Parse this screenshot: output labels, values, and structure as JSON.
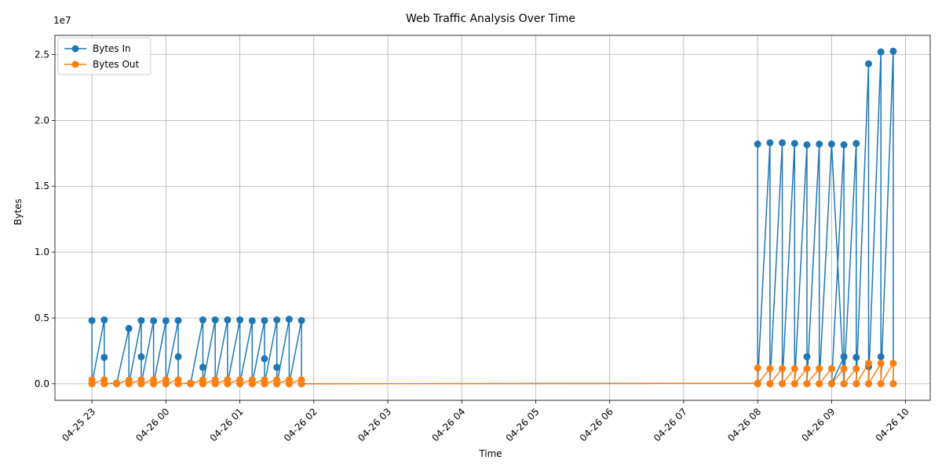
{
  "chart_data": {
    "type": "line",
    "title": "Web Traffic Analysis Over Time",
    "xlabel": "Time",
    "ylabel": "Bytes",
    "y_offset_text": "1e7",
    "ylim": [
      -1260000,
      26460000
    ],
    "xlim": [
      "2026-04-25 22:30",
      "2026-04-26 10:20"
    ],
    "grid": true,
    "legend_position": "top-left",
    "x_ticks": [
      {
        "time": "2026-04-25 23:00",
        "label": "04-25 23"
      },
      {
        "time": "2026-04-26 00:00",
        "label": "04-26 00"
      },
      {
        "time": "2026-04-26 01:00",
        "label": "04-26 01"
      },
      {
        "time": "2026-04-26 02:00",
        "label": "04-26 02"
      },
      {
        "time": "2026-04-26 03:00",
        "label": "04-26 03"
      },
      {
        "time": "2026-04-26 04:00",
        "label": "04-26 04"
      },
      {
        "time": "2026-04-26 05:00",
        "label": "04-26 05"
      },
      {
        "time": "2026-04-26 06:00",
        "label": "04-26 06"
      },
      {
        "time": "2026-04-26 07:00",
        "label": "04-26 07"
      },
      {
        "time": "2026-04-26 08:00",
        "label": "04-26 08"
      },
      {
        "time": "2026-04-26 09:00",
        "label": "04-26 09"
      },
      {
        "time": "2026-04-26 10:00",
        "label": "04-26 10"
      }
    ],
    "y_ticks": [
      {
        "value": 0,
        "label": "0.0"
      },
      {
        "value": 5000000,
        "label": "0.5"
      },
      {
        "value": 10000000,
        "label": "1.0"
      },
      {
        "value": 15000000,
        "label": "1.5"
      },
      {
        "value": 20000000,
        "label": "2.0"
      },
      {
        "value": 25000000,
        "label": "2.5"
      }
    ],
    "series": [
      {
        "name": "Bytes In",
        "color": "#1f77b4",
        "points": [
          [
            "2026-04-25 23:00",
            4800000
          ],
          [
            "2026-04-25 23:00",
            0
          ],
          [
            "2026-04-25 23:10",
            4850000
          ],
          [
            "2026-04-25 23:10",
            2000000
          ],
          [
            "2026-04-25 23:10",
            0
          ],
          [
            "2026-04-25 23:20",
            50000
          ],
          [
            "2026-04-25 23:20",
            0
          ],
          [
            "2026-04-25 23:30",
            4200000
          ],
          [
            "2026-04-25 23:30",
            0
          ],
          [
            "2026-04-25 23:40",
            4800000
          ],
          [
            "2026-04-25 23:40",
            2050000
          ],
          [
            "2026-04-25 23:40",
            0
          ],
          [
            "2026-04-25 23:50",
            4780000
          ],
          [
            "2026-04-25 23:50",
            0
          ],
          [
            "2026-04-26 00:00",
            4780000
          ],
          [
            "2026-04-26 00:00",
            0
          ],
          [
            "2026-04-26 00:10",
            4800000
          ],
          [
            "2026-04-26 00:10",
            2050000
          ],
          [
            "2026-04-26 00:10",
            0
          ],
          [
            "2026-04-26 00:20",
            50000
          ],
          [
            "2026-04-26 00:20",
            0
          ],
          [
            "2026-04-26 00:30",
            4850000
          ],
          [
            "2026-04-26 00:30",
            1250000
          ],
          [
            "2026-04-26 00:30",
            0
          ],
          [
            "2026-04-26 00:40",
            4850000
          ],
          [
            "2026-04-26 00:40",
            0
          ],
          [
            "2026-04-26 00:50",
            4850000
          ],
          [
            "2026-04-26 00:50",
            0
          ],
          [
            "2026-04-26 01:00",
            4850000
          ],
          [
            "2026-04-26 01:00",
            0
          ],
          [
            "2026-04-26 01:10",
            4780000
          ],
          [
            "2026-04-26 01:10",
            0
          ],
          [
            "2026-04-26 01:20",
            4800000
          ],
          [
            "2026-04-26 01:20",
            1900000
          ],
          [
            "2026-04-26 01:20",
            0
          ],
          [
            "2026-04-26 01:30",
            4850000
          ],
          [
            "2026-04-26 01:30",
            1250000
          ],
          [
            "2026-04-26 01:30",
            0
          ],
          [
            "2026-04-26 01:40",
            4900000
          ],
          [
            "2026-04-26 01:40",
            0
          ],
          [
            "2026-04-26 01:50",
            4800000
          ],
          [
            "2026-04-26 01:50",
            0
          ],
          [
            "2026-04-26 08:00",
            40000
          ],
          [
            "2026-04-26 08:00",
            18200000
          ],
          [
            "2026-04-26 08:00",
            0
          ],
          [
            "2026-04-26 08:10",
            18300000
          ],
          [
            "2026-04-26 08:10",
            0
          ],
          [
            "2026-04-26 08:20",
            18300000
          ],
          [
            "2026-04-26 08:20",
            0
          ],
          [
            "2026-04-26 08:30",
            18250000
          ],
          [
            "2026-04-26 08:30",
            0
          ],
          [
            "2026-04-26 08:40",
            18150000
          ],
          [
            "2026-04-26 08:40",
            2050000
          ],
          [
            "2026-04-26 08:40",
            0
          ],
          [
            "2026-04-26 08:50",
            18200000
          ],
          [
            "2026-04-26 08:50",
            0
          ],
          [
            "2026-04-26 09:00",
            18200000
          ],
          [
            "2026-04-26 09:10",
            0
          ],
          [
            "2026-04-26 09:10",
            2050000
          ],
          [
            "2026-04-26 09:00",
            0
          ],
          [
            "2026-04-26 09:10",
            18150000
          ],
          [
            "2026-04-26 09:10",
            0
          ],
          [
            "2026-04-26 09:20",
            18250000
          ],
          [
            "2026-04-26 09:20",
            2000000
          ],
          [
            "2026-04-26 09:20",
            0
          ],
          [
            "2026-04-26 09:30",
            24300000
          ],
          [
            "2026-04-26 09:30",
            1300000
          ],
          [
            "2026-04-26 09:30",
            0
          ],
          [
            "2026-04-26 09:40",
            25200000
          ],
          [
            "2026-04-26 09:40",
            2050000
          ],
          [
            "2026-04-26 09:40",
            0
          ],
          [
            "2026-04-26 09:50",
            25250000
          ],
          [
            "2026-04-26 09:50",
            0
          ]
        ]
      },
      {
        "name": "Bytes Out",
        "color": "#ff7f0e",
        "points": [
          [
            "2026-04-25 23:00",
            300000
          ],
          [
            "2026-04-25 23:00",
            0
          ],
          [
            "2026-04-25 23:10",
            300000
          ],
          [
            "2026-04-25 23:10",
            0
          ],
          [
            "2026-04-25 23:20",
            30000
          ],
          [
            "2026-04-25 23:20",
            0
          ],
          [
            "2026-04-25 23:30",
            280000
          ],
          [
            "2026-04-25 23:30",
            0
          ],
          [
            "2026-04-25 23:40",
            300000
          ],
          [
            "2026-04-25 23:40",
            0
          ],
          [
            "2026-04-25 23:50",
            300000
          ],
          [
            "2026-04-25 23:50",
            0
          ],
          [
            "2026-04-26 00:00",
            300000
          ],
          [
            "2026-04-26 00:00",
            0
          ],
          [
            "2026-04-26 00:10",
            300000
          ],
          [
            "2026-04-26 00:10",
            0
          ],
          [
            "2026-04-26 00:20",
            30000
          ],
          [
            "2026-04-26 00:20",
            0
          ],
          [
            "2026-04-26 00:30",
            300000
          ],
          [
            "2026-04-26 00:30",
            0
          ],
          [
            "2026-04-26 00:40",
            300000
          ],
          [
            "2026-04-26 00:40",
            0
          ],
          [
            "2026-04-26 00:50",
            300000
          ],
          [
            "2026-04-26 00:50",
            0
          ],
          [
            "2026-04-26 01:00",
            300000
          ],
          [
            "2026-04-26 01:00",
            0
          ],
          [
            "2026-04-26 01:10",
            300000
          ],
          [
            "2026-04-26 01:10",
            0
          ],
          [
            "2026-04-26 01:20",
            300000
          ],
          [
            "2026-04-26 01:20",
            0
          ],
          [
            "2026-04-26 01:30",
            300000
          ],
          [
            "2026-04-26 01:30",
            0
          ],
          [
            "2026-04-26 01:40",
            300000
          ],
          [
            "2026-04-26 01:40",
            0
          ],
          [
            "2026-04-26 01:50",
            300000
          ],
          [
            "2026-04-26 01:50",
            0
          ],
          [
            "2026-04-26 08:00",
            30000
          ],
          [
            "2026-04-26 08:00",
            1200000
          ],
          [
            "2026-04-26 08:00",
            0
          ],
          [
            "2026-04-26 08:10",
            1150000
          ],
          [
            "2026-04-26 08:10",
            0
          ],
          [
            "2026-04-26 08:20",
            1150000
          ],
          [
            "2026-04-26 08:20",
            0
          ],
          [
            "2026-04-26 08:30",
            1150000
          ],
          [
            "2026-04-26 08:30",
            0
          ],
          [
            "2026-04-26 08:40",
            1150000
          ],
          [
            "2026-04-26 08:40",
            0
          ],
          [
            "2026-04-26 08:50",
            1150000
          ],
          [
            "2026-04-26 08:50",
            0
          ],
          [
            "2026-04-26 09:00",
            1150000
          ],
          [
            "2026-04-26 09:00",
            0
          ],
          [
            "2026-04-26 09:10",
            1150000
          ],
          [
            "2026-04-26 09:10",
            0
          ],
          [
            "2026-04-26 09:20",
            1150000
          ],
          [
            "2026-04-26 09:20",
            0
          ],
          [
            "2026-04-26 09:30",
            1550000
          ],
          [
            "2026-04-26 09:30",
            0
          ],
          [
            "2026-04-26 09:40",
            1550000
          ],
          [
            "2026-04-26 09:40",
            0
          ],
          [
            "2026-04-26 09:50",
            1550000
          ],
          [
            "2026-04-26 09:50",
            0
          ]
        ]
      }
    ]
  }
}
